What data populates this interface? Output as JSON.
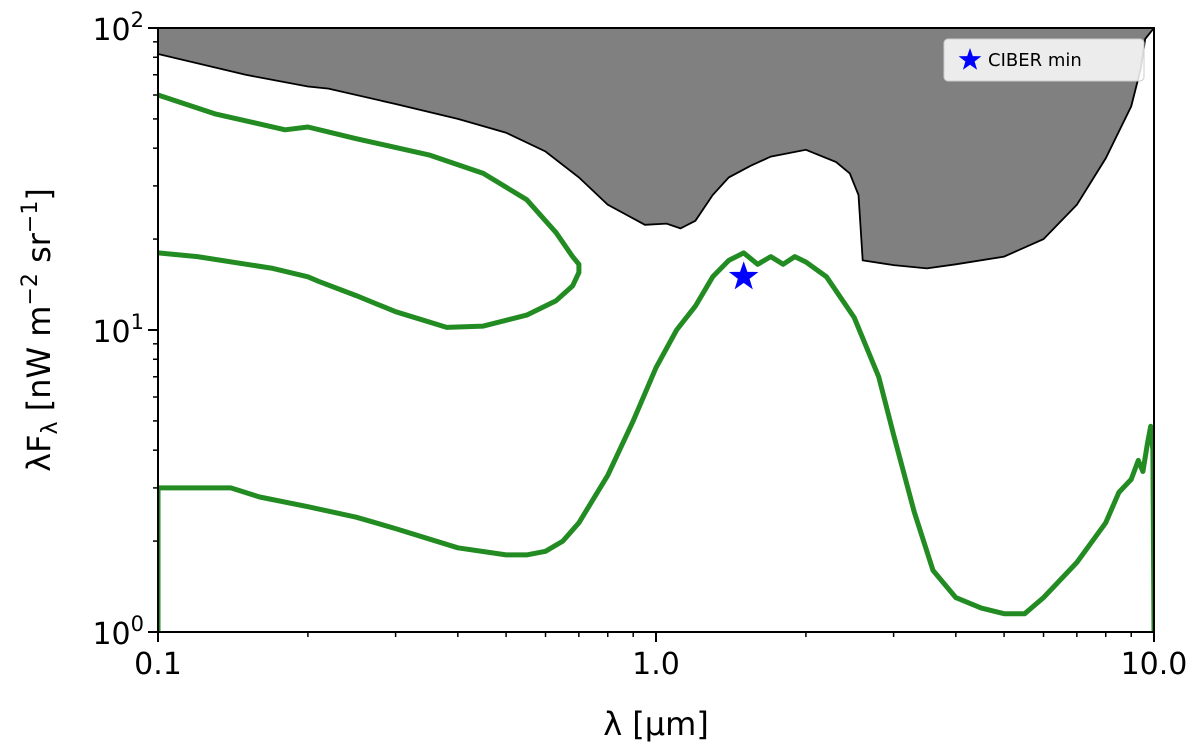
{
  "chart_data": {
    "type": "line",
    "xscale": "log",
    "yscale": "log",
    "xlim": [
      0.1,
      10.0
    ],
    "ylim": [
      1,
      100
    ],
    "x_ticks": [
      {
        "value": 0.1,
        "label": "0.1"
      },
      {
        "value": 1.0,
        "label": "1.0"
      },
      {
        "value": 10.0,
        "label": "10.0"
      }
    ],
    "y_ticks": [
      {
        "value": 1,
        "base": "10",
        "exp": "0"
      },
      {
        "value": 10,
        "base": "10",
        "exp": "1"
      },
      {
        "value": 100,
        "base": "10",
        "exp": "2"
      }
    ],
    "xlabel": "λ  [µm]",
    "ylabel": {
      "main": "λF",
      "sub": "λ",
      "unit_open": "  [nW m",
      "exp1": "−2",
      "mid": " sr",
      "exp2": "−1",
      "close": "]"
    },
    "colors": {
      "series": "#228b22",
      "excluded": "#808080",
      "marker": "#0000ff"
    },
    "excluded_region": {
      "name": "",
      "lower_boundary": [
        [
          0.1,
          82
        ],
        [
          0.15,
          70
        ],
        [
          0.2,
          64
        ],
        [
          0.22,
          63
        ],
        [
          0.3,
          56
        ],
        [
          0.4,
          50
        ],
        [
          0.5,
          45
        ],
        [
          0.6,
          39
        ],
        [
          0.7,
          32
        ],
        [
          0.8,
          26
        ],
        [
          0.95,
          22.3
        ],
        [
          1.05,
          22.5
        ],
        [
          1.12,
          21.7
        ],
        [
          1.2,
          23
        ],
        [
          1.3,
          28
        ],
        [
          1.4,
          32
        ],
        [
          1.55,
          35
        ],
        [
          1.7,
          37.5
        ],
        [
          2.0,
          39.5
        ],
        [
          2.3,
          36
        ],
        [
          2.45,
          33
        ],
        [
          2.55,
          28
        ],
        [
          2.6,
          17
        ],
        [
          3.0,
          16.4
        ],
        [
          3.5,
          16
        ],
        [
          4.0,
          16.5
        ],
        [
          5.0,
          17.5
        ],
        [
          6.0,
          20
        ],
        [
          7.0,
          26
        ],
        [
          8.0,
          37
        ],
        [
          9.0,
          55
        ],
        [
          9.4,
          73
        ],
        [
          9.6,
          92
        ],
        [
          10.0,
          100
        ]
      ]
    },
    "series": [
      {
        "name": "",
        "points": [
          [
            0.1,
            1
          ],
          [
            0.1,
            3.0
          ],
          [
            0.14,
            3.0
          ],
          [
            0.16,
            2.8
          ],
          [
            0.2,
            2.6
          ],
          [
            0.25,
            2.4
          ],
          [
            0.3,
            2.2
          ],
          [
            0.4,
            1.9
          ],
          [
            0.5,
            1.8
          ],
          [
            0.55,
            1.8
          ],
          [
            0.6,
            1.85
          ],
          [
            0.65,
            2.0
          ],
          [
            0.7,
            2.3
          ],
          [
            0.8,
            3.3
          ],
          [
            0.9,
            5.0
          ],
          [
            1.0,
            7.5
          ],
          [
            1.1,
            10.0
          ],
          [
            1.2,
            12.0
          ],
          [
            1.3,
            15.0
          ],
          [
            1.4,
            17.0
          ],
          [
            1.5,
            18.0
          ],
          [
            1.6,
            16.5
          ],
          [
            1.7,
            17.5
          ],
          [
            1.8,
            16.5
          ],
          [
            1.9,
            17.5
          ],
          [
            2.0,
            16.8
          ],
          [
            2.2,
            15.0
          ],
          [
            2.5,
            11.0
          ],
          [
            2.8,
            7.0
          ],
          [
            3.0,
            4.5
          ],
          [
            3.3,
            2.5
          ],
          [
            3.6,
            1.6
          ],
          [
            4.0,
            1.3
          ],
          [
            4.5,
            1.2
          ],
          [
            5.0,
            1.15
          ],
          [
            5.5,
            1.15
          ],
          [
            6.0,
            1.3
          ],
          [
            7.0,
            1.7
          ],
          [
            8.0,
            2.3
          ],
          [
            8.5,
            2.9
          ],
          [
            9.0,
            3.2
          ],
          [
            9.3,
            3.7
          ],
          [
            9.5,
            3.4
          ],
          [
            9.7,
            4.2
          ],
          [
            9.85,
            4.8
          ],
          [
            9.95,
            4.0
          ],
          [
            10.0,
            1.0
          ]
        ]
      },
      {
        "name": "",
        "points": [
          [
            0.1,
            60
          ],
          [
            0.13,
            52
          ],
          [
            0.18,
            46
          ],
          [
            0.2,
            47
          ],
          [
            0.25,
            43
          ],
          [
            0.35,
            38
          ],
          [
            0.45,
            33
          ],
          [
            0.55,
            27
          ],
          [
            0.63,
            21
          ],
          [
            0.68,
            17.5
          ],
          [
            0.7,
            16.5
          ],
          [
            0.7,
            15.5
          ],
          [
            0.68,
            14
          ],
          [
            0.63,
            12.5
          ],
          [
            0.55,
            11.2
          ],
          [
            0.45,
            10.3
          ],
          [
            0.38,
            10.2
          ],
          [
            0.3,
            11.5
          ],
          [
            0.25,
            13.0
          ],
          [
            0.21,
            14.5
          ],
          [
            0.2,
            15
          ],
          [
            0.17,
            16
          ],
          [
            0.12,
            17.5
          ],
          [
            0.1,
            18
          ]
        ]
      }
    ],
    "markers": [
      {
        "name": "CIBER min",
        "x": 1.5,
        "y": 15.0
      }
    ],
    "legend": {
      "position": "top-right",
      "entries": [
        "CIBER min"
      ]
    }
  }
}
